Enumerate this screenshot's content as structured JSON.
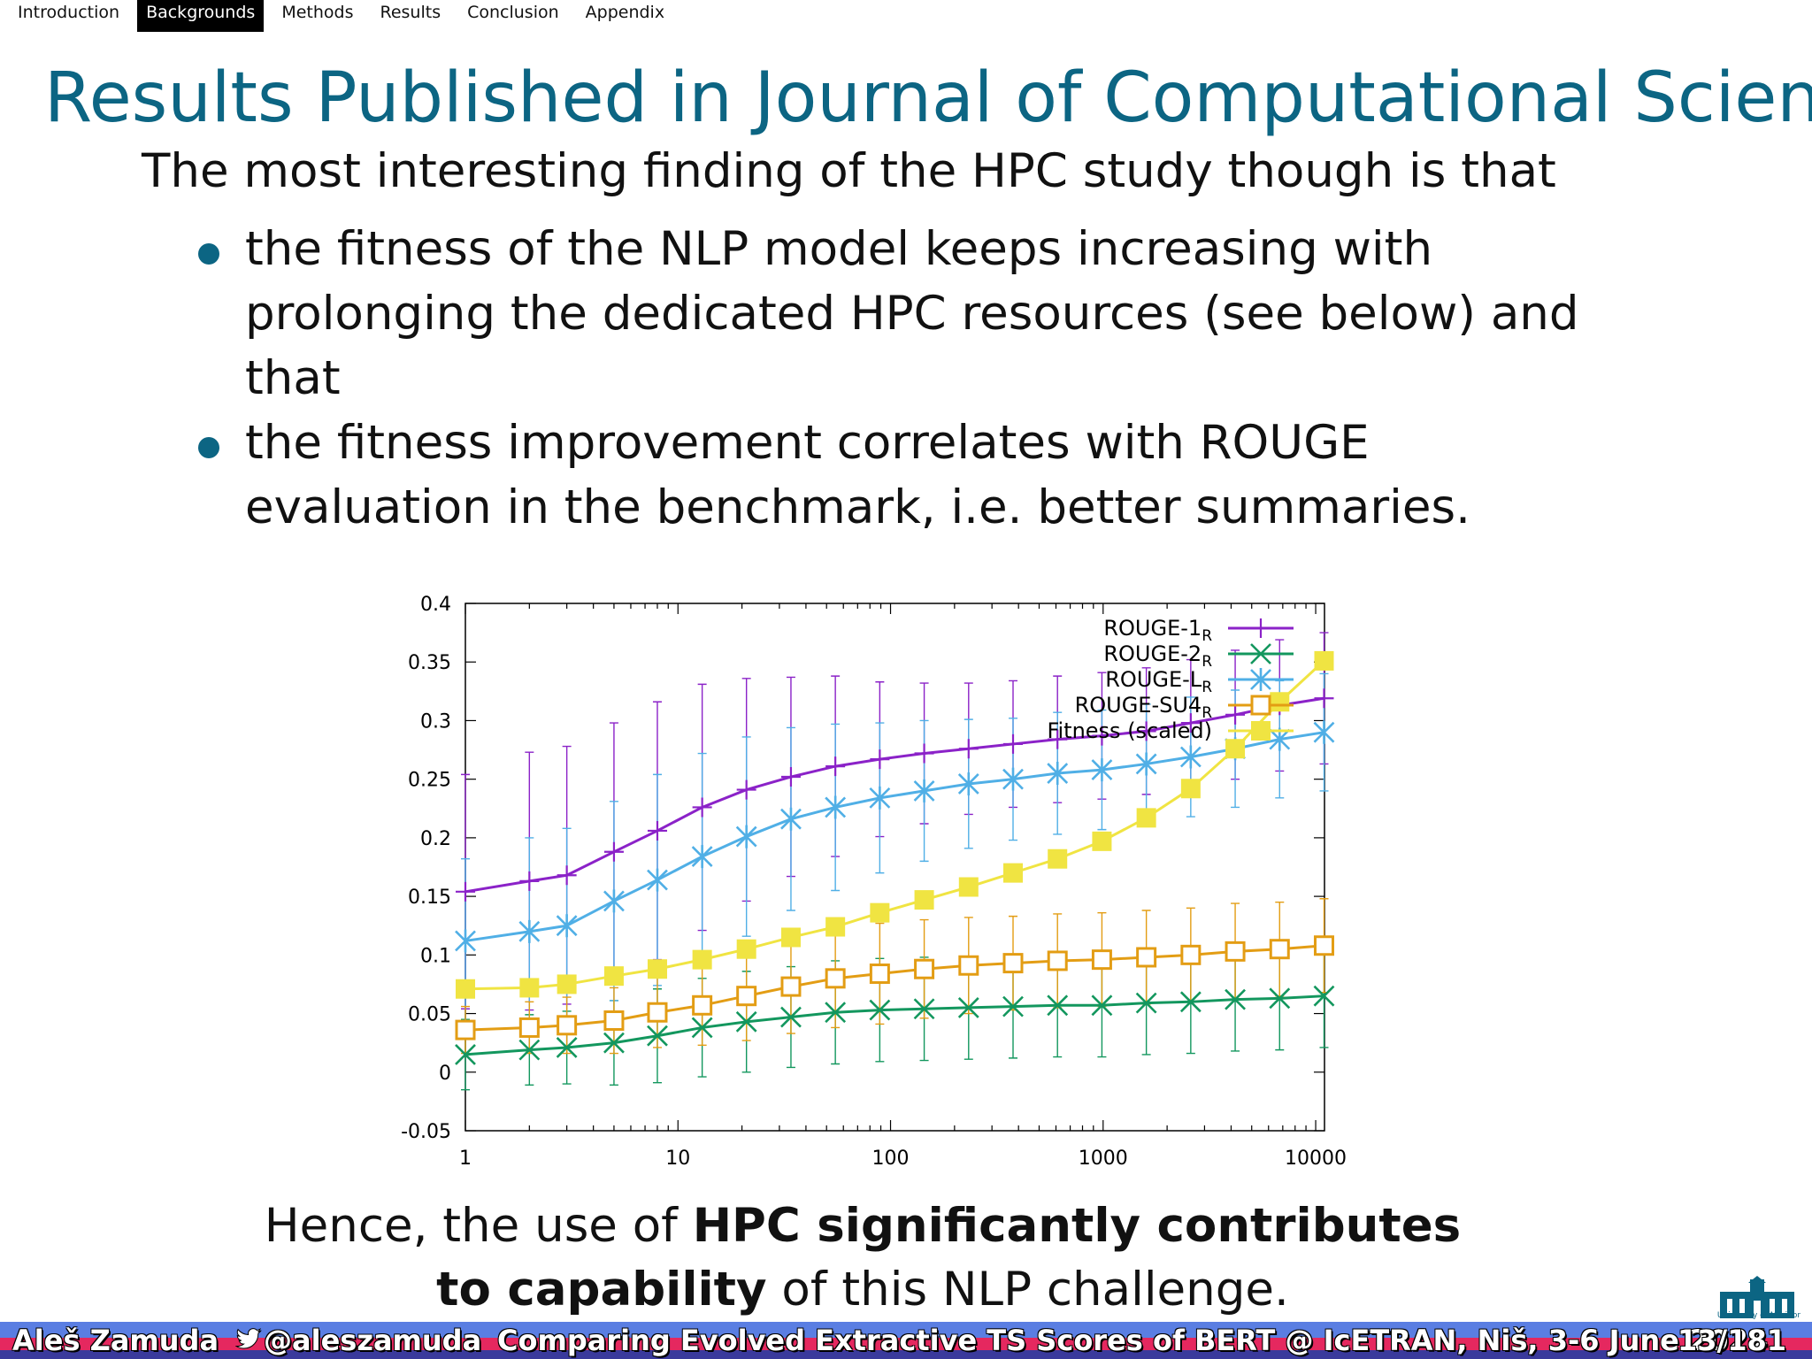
{
  "nav": {
    "items": [
      "Introduction",
      "Backgrounds",
      "Methods",
      "Results",
      "Conclusion",
      "Appendix"
    ],
    "active_index": 1
  },
  "slide": {
    "title": "Results Published in Journal of Computational Science",
    "lead": "The most interesting finding of the HPC study though is that",
    "bullets": [
      "the fitness of the NLP model keeps increasing with prolonging the dedicated HPC resources (see below) and that",
      "the fitness improvement correlates with ROUGE evaluation in the benchmark, i.e. better summaries."
    ],
    "conclusion_pre": "Hence, the use of ",
    "conclusion_bold": "HPC significantly contributes to capability",
    "conclusion_post": " of this NLP challenge."
  },
  "logo": {
    "caption": "University of Maribor"
  },
  "footer": {
    "author": "Aleš Zamuda",
    "handle": "@aleszamuda",
    "talk": "Comparing Evolved Extractive TS Scores of BERT @ IcETRAN, Niš, 3-6 June 2024",
    "page": "13/181"
  },
  "chart_data": {
    "type": "line",
    "x_scale": "log",
    "xlim": [
      1,
      11000
    ],
    "ylim": [
      -0.05,
      0.4
    ],
    "x_ticks": [
      "1",
      "10",
      "100",
      "1000",
      "10000"
    ],
    "y_ticks": [
      "-0.05",
      "0",
      "0.05",
      "0.1",
      "0.15",
      "0.2",
      "0.25",
      "0.3",
      "0.35",
      "0.4"
    ],
    "legend_position": "top-right",
    "x": [
      1,
      2,
      3,
      5,
      8,
      13,
      21,
      34,
      55,
      89,
      144,
      233,
      377,
      610,
      987,
      1597,
      2584,
      4181,
      6765,
      10946
    ],
    "series": [
      {
        "name": "ROUGE-1",
        "subscript": "R",
        "color": "#8b22c8",
        "marker": "plus",
        "values": [
          0.154,
          0.163,
          0.168,
          0.188,
          0.206,
          0.226,
          0.241,
          0.252,
          0.261,
          0.267,
          0.272,
          0.276,
          0.28,
          0.284,
          0.287,
          0.291,
          0.298,
          0.305,
          0.313,
          0.319
        ],
        "error": [
          0.1,
          0.11,
          0.11,
          0.11,
          0.11,
          0.105,
          0.095,
          0.085,
          0.077,
          0.066,
          0.06,
          0.056,
          0.054,
          0.054,
          0.054,
          0.054,
          0.054,
          0.055,
          0.056,
          0.056
        ]
      },
      {
        "name": "ROUGE-2",
        "subscript": "R",
        "color": "#13975e",
        "marker": "x",
        "values": [
          0.015,
          0.019,
          0.021,
          0.025,
          0.031,
          0.038,
          0.043,
          0.047,
          0.051,
          0.053,
          0.054,
          0.055,
          0.056,
          0.057,
          0.057,
          0.059,
          0.06,
          0.062,
          0.063,
          0.065
        ],
        "error": [
          0.03,
          0.03,
          0.031,
          0.036,
          0.04,
          0.042,
          0.043,
          0.043,
          0.044,
          0.044,
          0.044,
          0.044,
          0.044,
          0.044,
          0.044,
          0.044,
          0.044,
          0.044,
          0.044,
          0.044
        ]
      },
      {
        "name": "ROUGE-L",
        "subscript": "R",
        "color": "#50afe6",
        "marker": "star",
        "values": [
          0.112,
          0.12,
          0.125,
          0.146,
          0.164,
          0.184,
          0.201,
          0.216,
          0.226,
          0.234,
          0.24,
          0.246,
          0.25,
          0.255,
          0.258,
          0.263,
          0.269,
          0.276,
          0.284,
          0.29
        ],
        "error": [
          0.07,
          0.08,
          0.083,
          0.085,
          0.09,
          0.088,
          0.085,
          0.078,
          0.071,
          0.064,
          0.06,
          0.055,
          0.052,
          0.052,
          0.051,
          0.051,
          0.051,
          0.05,
          0.05,
          0.05
        ]
      },
      {
        "name": "ROUGE-SU4",
        "subscript": "R",
        "color": "#e39d14",
        "marker": "square-open",
        "values": [
          0.036,
          0.038,
          0.04,
          0.044,
          0.051,
          0.057,
          0.065,
          0.073,
          0.08,
          0.084,
          0.088,
          0.091,
          0.093,
          0.095,
          0.096,
          0.098,
          0.1,
          0.103,
          0.105,
          0.108
        ],
        "error": [
          0.02,
          0.022,
          0.024,
          0.028,
          0.03,
          0.034,
          0.038,
          0.04,
          0.042,
          0.043,
          0.042,
          0.041,
          0.04,
          0.04,
          0.04,
          0.04,
          0.04,
          0.041,
          0.04,
          0.04
        ]
      },
      {
        "name": "Fitness (scaled)",
        "subscript": "",
        "color": "#f0e442",
        "marker": "square-filled",
        "values": [
          0.071,
          0.072,
          0.075,
          0.082,
          0.088,
          0.096,
          0.105,
          0.115,
          0.124,
          0.136,
          0.147,
          0.158,
          0.17,
          0.182,
          0.197,
          0.217,
          0.242,
          0.276,
          0.316,
          0.351
        ]
      }
    ]
  }
}
